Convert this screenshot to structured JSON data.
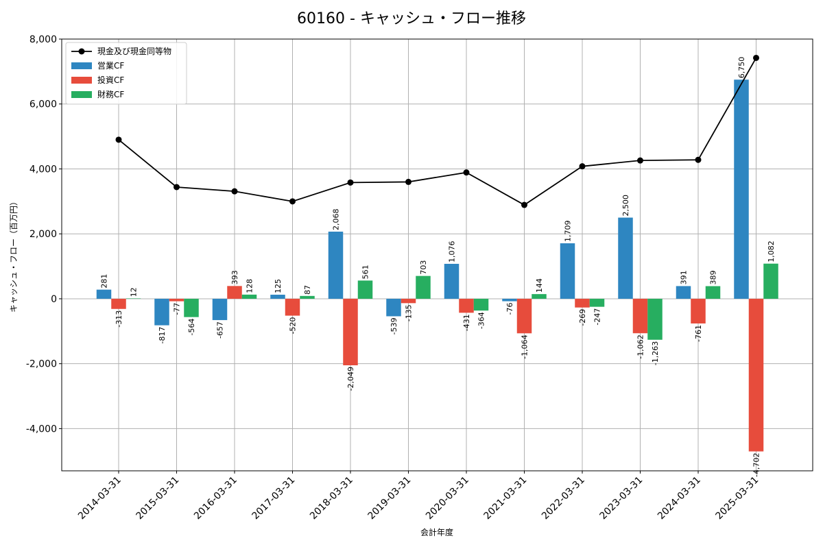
{
  "chart_data": {
    "type": "bar",
    "title": "60160 - キャッシュ・フロー推移",
    "xlabel": "会計年度",
    "ylabel": "キャッシュ・フロー（百万円）",
    "ylim": [
      -5300,
      8000
    ],
    "yticks": [
      -4000,
      -2000,
      0,
      2000,
      4000,
      6000,
      8000
    ],
    "ytick_labels": [
      "-4,000",
      "-2,000",
      "0",
      "2,000",
      "4,000",
      "6,000",
      "8,000"
    ],
    "grid": true,
    "legend_position": "top-left",
    "categories": [
      "2014-03-31",
      "2015-03-31",
      "2016-03-31",
      "2017-03-31",
      "2018-03-31",
      "2019-03-31",
      "2020-03-31",
      "2021-03-31",
      "2022-03-31",
      "2023-03-31",
      "2024-03-31",
      "2025-03-31"
    ],
    "series": [
      {
        "name": "営業CF",
        "kind": "bar",
        "color": "#2e86c1",
        "values": [
          281,
          -817,
          -657,
          125,
          2068,
          -539,
          1076,
          -76,
          1709,
          2500,
          391,
          6750
        ],
        "labels": [
          "281",
          "-817",
          "-657",
          "125",
          "2,068",
          "-539",
          "1,076",
          "-76",
          "1,709",
          "2,500",
          "391",
          "6,750"
        ]
      },
      {
        "name": "投資CF",
        "kind": "bar",
        "color": "#e74c3c",
        "values": [
          -313,
          -77,
          393,
          -520,
          -2049,
          -135,
          -431,
          -1064,
          -269,
          -1062,
          -761,
          -4702
        ],
        "labels": [
          "-313",
          "-77",
          "393",
          "-520",
          "-2,049",
          "-135",
          "-431",
          "-1,064",
          "-269",
          "-1,062",
          "-761",
          "-4,702"
        ]
      },
      {
        "name": "財務CF",
        "kind": "bar",
        "color": "#27ae60",
        "values": [
          12,
          -564,
          128,
          87,
          561,
          703,
          -364,
          144,
          -247,
          -1263,
          389,
          1082
        ],
        "labels": [
          "12",
          "-564",
          "128",
          "87",
          "561",
          "703",
          "-364",
          "144",
          "-247",
          "-1,263",
          "389",
          "1,082"
        ]
      },
      {
        "name": "現金及び現金同等物",
        "kind": "line",
        "color": "#000000",
        "values": [
          4900,
          3440,
          3310,
          3000,
          3580,
          3600,
          3890,
          2890,
          4080,
          4260,
          4280,
          7420
        ]
      }
    ]
  }
}
